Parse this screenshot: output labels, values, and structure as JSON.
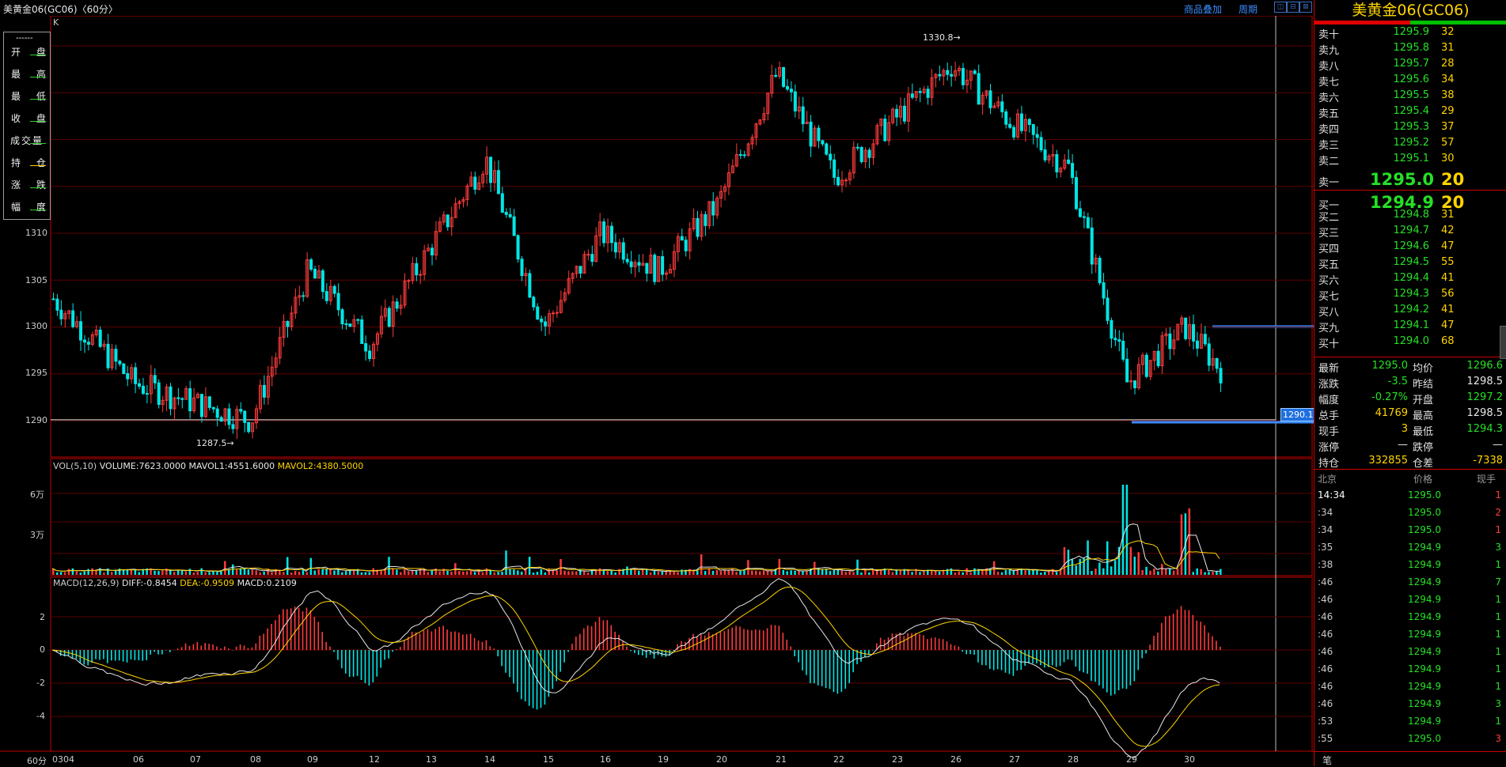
{
  "window": {
    "title": "美黄金06(GC06)〈60分〉",
    "links": [
      "商品叠加",
      "周期"
    ],
    "buttons": [
      "◫",
      "⊟",
      "⊠"
    ]
  },
  "info_box": {
    "header": "------",
    "labels": [
      "开 盘",
      "最 高",
      "最 低",
      "收 盘",
      "成交量",
      "持 仓",
      "涨 跌",
      "幅 度"
    ]
  },
  "price_panel": {
    "mark": "K",
    "high_label": "1330.8",
    "low_label": "1287.5",
    "current_tag": "1290.1",
    "y_ticks": [
      "1290",
      "1295",
      "1300",
      "1305",
      "1310"
    ]
  },
  "volume_panel": {
    "legend": {
      "prefix": "VOL(5,10)",
      "volume": "VOLUME:7623.0000",
      "mavol1": "MAVOL1:4551.6000",
      "mavol2": "MAVOL2:4380.5000"
    },
    "y_ticks": [
      "6万",
      "3万"
    ]
  },
  "macd_panel": {
    "legend": {
      "prefix": "MACD(12,26,9)",
      "diff": "DIFF:-0.8454",
      "dea": "DEA:-0.9509",
      "macd": "MACD:0.2109"
    },
    "y_ticks": [
      "2",
      "0",
      "-2",
      "-4"
    ]
  },
  "x_axis": {
    "period": "60分",
    "labels": [
      "0304",
      "06",
      "07",
      "08",
      "09",
      "12",
      "13",
      "14",
      "15",
      "16",
      "19",
      "20",
      "21",
      "22",
      "23",
      "26",
      "27",
      "28",
      "29",
      "30"
    ]
  },
  "colors": {
    "up": "#ff3b3b",
    "down": "#00e6e6",
    "grid": "#5a0000",
    "frame": "#c00000"
  },
  "quote": {
    "title": "美黄金06(GC06)",
    "asks": [
      {
        "label": "卖十",
        "price": "1295.9",
        "qty": "32"
      },
      {
        "label": "卖九",
        "price": "1295.8",
        "qty": "31"
      },
      {
        "label": "卖八",
        "price": "1295.7",
        "qty": "28"
      },
      {
        "label": "卖七",
        "price": "1295.6",
        "qty": "34"
      },
      {
        "label": "卖六",
        "price": "1295.5",
        "qty": "38"
      },
      {
        "label": "卖五",
        "price": "1295.4",
        "qty": "29"
      },
      {
        "label": "卖四",
        "price": "1295.3",
        "qty": "37"
      },
      {
        "label": "卖三",
        "price": "1295.2",
        "qty": "57"
      },
      {
        "label": "卖二",
        "price": "1295.1",
        "qty": "30"
      },
      {
        "label": "卖一",
        "price": "1295.0",
        "qty": "20"
      }
    ],
    "bids": [
      {
        "label": "买一",
        "price": "1294.9",
        "qty": "20"
      },
      {
        "label": "买二",
        "price": "1294.8",
        "qty": "31"
      },
      {
        "label": "买三",
        "price": "1294.7",
        "qty": "42"
      },
      {
        "label": "买四",
        "price": "1294.6",
        "qty": "47"
      },
      {
        "label": "买五",
        "price": "1294.5",
        "qty": "55"
      },
      {
        "label": "买六",
        "price": "1294.4",
        "qty": "41"
      },
      {
        "label": "买七",
        "price": "1294.3",
        "qty": "56"
      },
      {
        "label": "买八",
        "price": "1294.2",
        "qty": "41"
      },
      {
        "label": "买九",
        "price": "1294.1",
        "qty": "47"
      },
      {
        "label": "买十",
        "price": "1294.0",
        "qty": "68"
      }
    ],
    "stats": [
      {
        "l1": "最新",
        "v1": "1295.0",
        "c1": "g",
        "l2": "均价",
        "v2": "1296.6",
        "c2": "g"
      },
      {
        "l1": "涨跌",
        "v1": "-3.5",
        "c1": "g",
        "l2": "昨结",
        "v2": "1298.5",
        "c2": "w"
      },
      {
        "l1": "幅度",
        "v1": "-0.27%",
        "c1": "g",
        "l2": "开盘",
        "v2": "1297.2",
        "c2": "g"
      },
      {
        "l1": "总手",
        "v1": "41769",
        "c1": "y",
        "l2": "最高",
        "v2": "1298.5",
        "c2": "w"
      },
      {
        "l1": "现手",
        "v1": "3",
        "c1": "y",
        "l2": "最低",
        "v2": "1294.3",
        "c2": "g"
      },
      {
        "l1": "涨停",
        "v1": "—",
        "c1": "w",
        "l2": "跌停",
        "v2": "—",
        "c2": "w"
      },
      {
        "l1": "持仓",
        "v1": "332855",
        "c1": "y",
        "l2": "仓差",
        "v2": "-7338",
        "c2": "y"
      }
    ],
    "ticks_header": {
      "time": "北京",
      "price": "价格",
      "qty": "现手"
    },
    "ticks": [
      {
        "time": "14:34",
        "price": "1295.0",
        "qty": "1",
        "qc": "r"
      },
      {
        "time": ":34",
        "price": "1295.0",
        "qty": "2",
        "qc": "r"
      },
      {
        "time": ":34",
        "price": "1295.0",
        "qty": "1",
        "qc": "r"
      },
      {
        "time": ":35",
        "price": "1294.9",
        "qty": "3",
        "qc": "g"
      },
      {
        "time": ":38",
        "price": "1294.9",
        "qty": "1",
        "qc": "g"
      },
      {
        "time": ":46",
        "price": "1294.9",
        "qty": "7",
        "qc": "g"
      },
      {
        "time": ":46",
        "price": "1294.9",
        "qty": "1",
        "qc": "g"
      },
      {
        "time": ":46",
        "price": "1294.9",
        "qty": "1",
        "qc": "g"
      },
      {
        "time": ":46",
        "price": "1294.9",
        "qty": "1",
        "qc": "g"
      },
      {
        "time": ":46",
        "price": "1294.9",
        "qty": "1",
        "qc": "g"
      },
      {
        "time": ":46",
        "price": "1294.9",
        "qty": "1",
        "qc": "g"
      },
      {
        "time": ":46",
        "price": "1294.9",
        "qty": "1",
        "qc": "g"
      },
      {
        "time": ":46",
        "price": "1294.9",
        "qty": "3",
        "qc": "g"
      },
      {
        "time": ":53",
        "price": "1294.9",
        "qty": "1",
        "qc": "g"
      },
      {
        "time": ":55",
        "price": "1295.0",
        "qty": "3",
        "qc": "r"
      }
    ],
    "footer": "笔"
  },
  "chart_data": {
    "type": "candlestick",
    "interval": "60分",
    "price_range": [
      1285,
      1335
    ],
    "key_points": [
      {
        "x": "0304",
        "close": 1303
      },
      {
        "x": "06",
        "close": 1294
      },
      {
        "x": "08",
        "close": 1290,
        "low": 1287.5
      },
      {
        "x": "09",
        "close": 1306
      },
      {
        "x": "12",
        "close": 1298
      },
      {
        "x": "14",
        "close": 1318
      },
      {
        "x": "15",
        "close": 1300
      },
      {
        "x": "16",
        "close": 1310
      },
      {
        "x": "19",
        "close": 1306
      },
      {
        "x": "20",
        "close": 1313
      },
      {
        "x": "21",
        "close": 1327
      },
      {
        "x": "22",
        "close": 1316
      },
      {
        "x": "23",
        "close": 1322
      },
      {
        "x": "26",
        "close": 1328,
        "high": 1330.8
      },
      {
        "x": "27",
        "close": 1322
      },
      {
        "x": "28",
        "close": 1317
      },
      {
        "x": "29",
        "close": 1294
      },
      {
        "x": "30",
        "close": 1300
      }
    ],
    "last_close": 1295.0,
    "reference_line": 1290.1
  }
}
